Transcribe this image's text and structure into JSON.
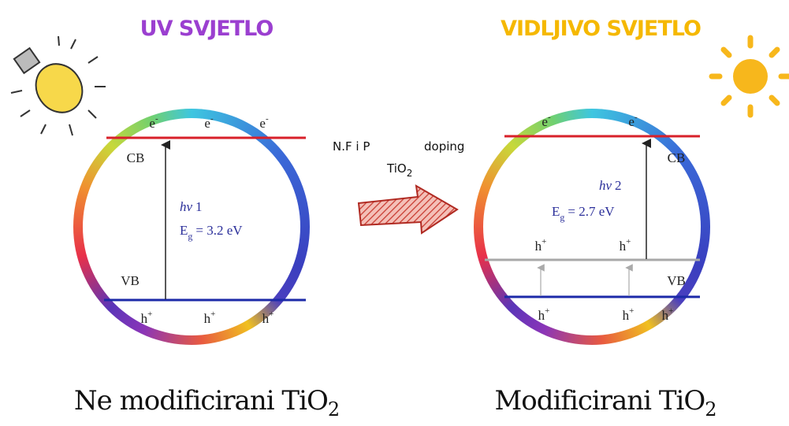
{
  "left_panel": {
    "light": "UV SVJETLO",
    "electrons": [
      {
        "symbol": "e",
        "charge": "-"
      },
      {
        "symbol": "e",
        "charge": "-"
      },
      {
        "symbol": "e",
        "charge": "-"
      }
    ],
    "cb": "CB",
    "vb": "VB",
    "photon": {
      "symbol": "hv",
      "index": "1"
    },
    "band_gap": {
      "symbol": "E",
      "sub": "g",
      "value": "= 3.2 eV"
    },
    "holes_vb": [
      {
        "symbol": "h",
        "charge": "+"
      },
      {
        "symbol": "h",
        "charge": "+"
      },
      {
        "symbol": "h",
        "charge": "+"
      }
    ],
    "caption": {
      "text": "Ne modificirani TiO",
      "sub": "2"
    }
  },
  "transition": {
    "dopants": "N.F i P",
    "process": "doping",
    "material": {
      "text": "TiO",
      "sub": "2"
    }
  },
  "right_panel": {
    "light": "VIDLJIVO SVJETLO",
    "electrons": [
      {
        "symbol": "e",
        "charge": "-"
      },
      {
        "symbol": "e",
        "charge": "-"
      }
    ],
    "cb": "CB",
    "vb": "VB",
    "photon": {
      "symbol": "hv",
      "index": "2"
    },
    "band_gap": {
      "symbol": "E",
      "sub": "g",
      "value": "= 2.7 eV"
    },
    "holes_upper": [
      {
        "symbol": "h",
        "charge": "+"
      },
      {
        "symbol": "h",
        "charge": "+"
      }
    ],
    "holes_vb": [
      {
        "symbol": "h",
        "charge": "+"
      },
      {
        "symbol": "h",
        "charge": "+"
      },
      {
        "symbol": "h",
        "charge": "+"
      }
    ],
    "caption": {
      "text": "Modificirani TiO",
      "sub": "2"
    }
  }
}
